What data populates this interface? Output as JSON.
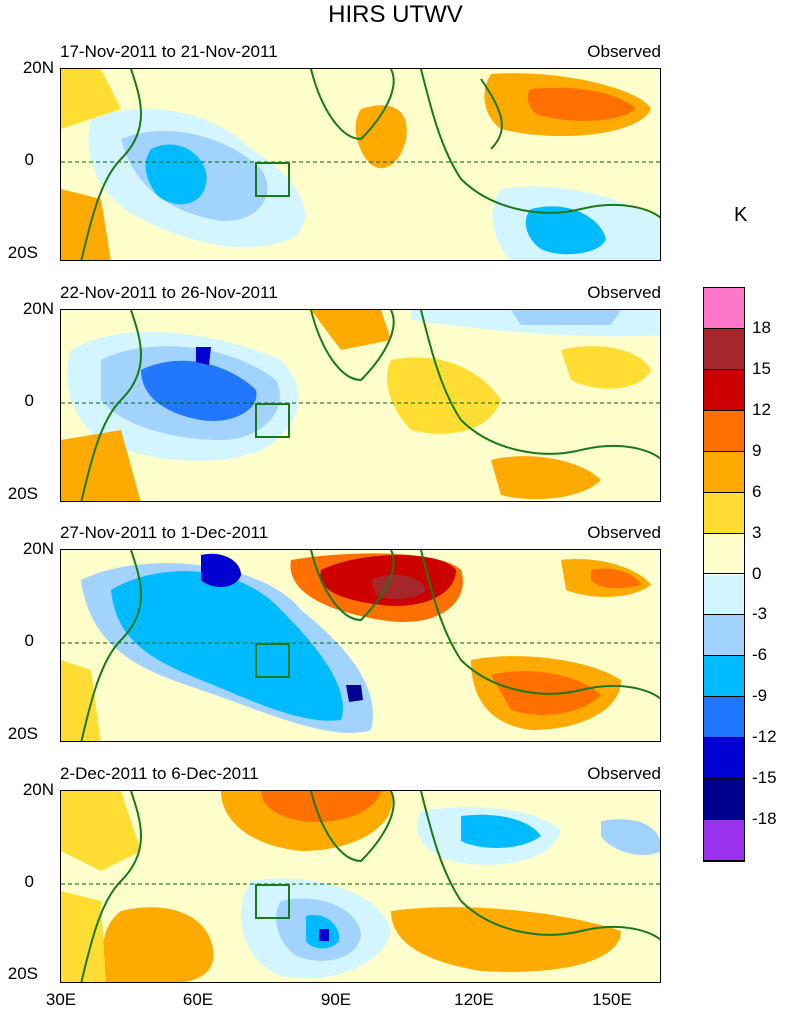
{
  "title": "HIRS UTWV",
  "unit": "K",
  "panels": [
    {
      "date_range": "17-Nov-2011 to 21-Nov-2011",
      "type_label": "Observed"
    },
    {
      "date_range": "22-Nov-2011 to 26-Nov-2011",
      "type_label": "Observed"
    },
    {
      "date_range": "27-Nov-2011 to 1-Dec-2011",
      "type_label": "Observed"
    },
    {
      "date_range": "2-Dec-2011 to 6-Dec-2011",
      "type_label": "Observed"
    }
  ],
  "lat_labels": [
    "20N",
    "0",
    "20S"
  ],
  "lon_labels": [
    "30E",
    "60E",
    "90E",
    "120E",
    "150E"
  ],
  "colorbar": {
    "labels": [
      "18",
      "15",
      "12",
      "9",
      "6",
      "3",
      "0",
      "-3",
      "-6",
      "-9",
      "-12",
      "-15",
      "-18"
    ],
    "colors": [
      "#ff77c8",
      "#a5272b",
      "#cc0000",
      "#ff7000",
      "#ffaa00",
      "#ffdd33",
      "#ffffcc",
      "#d2f5ff",
      "#a2d3ff",
      "#00bbff",
      "#2277ff",
      "#0000d0",
      "#000090",
      "#9933ee"
    ]
  }
}
